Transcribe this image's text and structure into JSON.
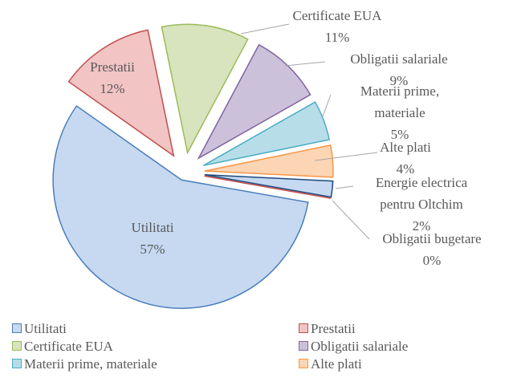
{
  "chart_data": {
    "type": "pie",
    "categories": [
      "Utilitati",
      "Prestatii",
      "Certificate EUA",
      "Obligatii salariale",
      "Materii prime, materiale",
      "Alte plati",
      "Energie electrica pentru Oltchim",
      "Obligatii bugetare"
    ],
    "values": [
      57,
      12,
      11,
      9,
      5,
      4,
      2,
      0
    ],
    "value_labels": [
      "57%",
      "12%",
      "11%",
      "9%",
      "5%",
      "4%",
      "2%",
      "0%"
    ],
    "colors": [
      "#c6d9f1",
      "#f2c4c4",
      "#d7e4bd",
      "#ccc1da",
      "#b7dee8",
      "#fcd5b5",
      "#c6d9f1",
      "#f2c4c4"
    ],
    "edge_colors": [
      "#4a7ebb",
      "#c0504d",
      "#9bbb59",
      "#8064a2",
      "#4bacc6",
      "#f79646",
      "#1f497d",
      "#c0504d"
    ],
    "legend": "bottom"
  }
}
